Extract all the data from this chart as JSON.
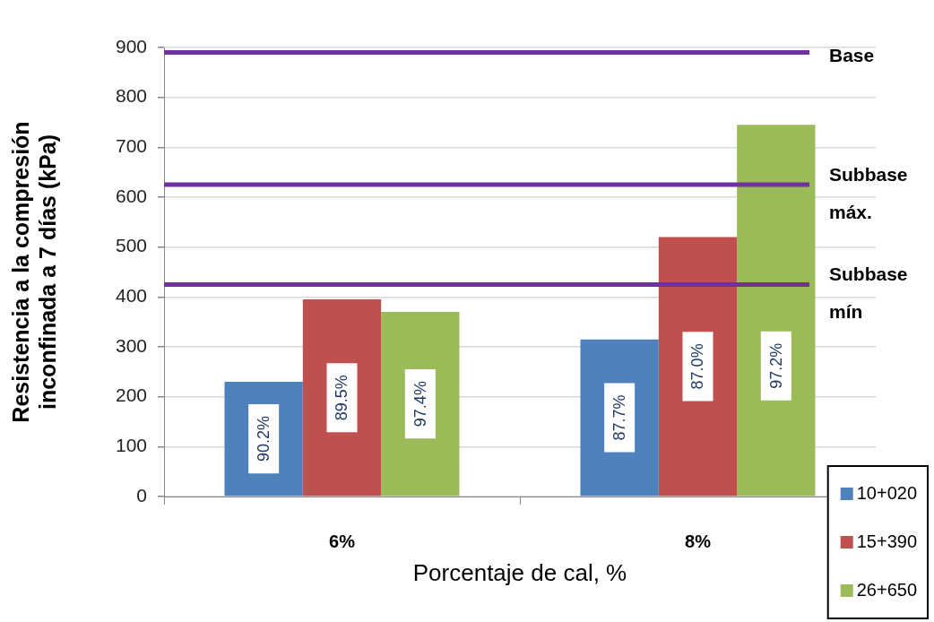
{
  "chart_data": {
    "type": "bar",
    "xlabel": "Porcentaje de cal, %",
    "ylabel": "Resistencia a la compresión inconfinada a 7 días (kPa)",
    "categories": [
      "6%",
      "8%"
    ],
    "series": [
      {
        "name": "10+020",
        "color": "#4f81bd",
        "values": [
          230,
          315
        ]
      },
      {
        "name": "15+390",
        "color": "#c0504d",
        "values": [
          395,
          520
        ]
      },
      {
        "name": "26+650",
        "color": "#9bbb59",
        "values": [
          370,
          745
        ]
      }
    ],
    "annotations": [
      "90.2%",
      "89.5%",
      "97.4%",
      "87.7%",
      "87.0%",
      "97.2%"
    ],
    "ylim": [
      0,
      900
    ],
    "yticks": [
      0,
      100,
      200,
      300,
      400,
      500,
      600,
      700,
      800,
      900
    ],
    "grid": "y",
    "legend": "bottom right",
    "ref_lines": [
      {
        "axis": "y",
        "value": 890,
        "label": "Base",
        "color": "#7030a0"
      },
      {
        "axis": "y",
        "value": 625,
        "label": "Subbase máx.",
        "color": "#7030a0"
      },
      {
        "axis": "y",
        "value": 425,
        "label": "Subbase mín",
        "color": "#7030a0"
      }
    ]
  }
}
